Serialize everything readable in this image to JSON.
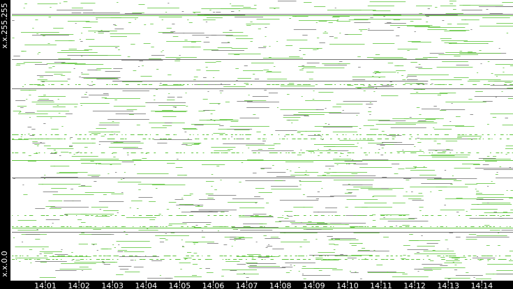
{
  "chart_data": {
    "type": "scatter",
    "title": "",
    "xlabel": "",
    "ylabel": "",
    "y_tick_labels": {
      "top": "x.x.255.255",
      "bottom": "x.x.0.0"
    },
    "x_tick_labels": [
      "14:01",
      "14:02",
      "14:03",
      "14:04",
      "14:05",
      "14:06",
      "14:07",
      "14:08",
      "14:09",
      "14:10",
      "14:11",
      "14:12",
      "14:13",
      "14:14"
    ],
    "xlim": [
      "14:00",
      "14:15"
    ],
    "grid": false,
    "colors": {
      "green": "#5cc43a",
      "gray": "#707070",
      "background": "#ffffff",
      "frame": "#000000"
    },
    "prominent_lines": [
      {
        "color": "gray",
        "ip_fraction": 0.953,
        "from": "14:00",
        "to": "14:15"
      },
      {
        "color": "green",
        "ip_fraction": 0.948,
        "from": "14:00",
        "to": "14:15"
      },
      {
        "color": "gray",
        "ip_fraction": 0.79,
        "from": "14:00",
        "to": "14:15"
      },
      {
        "color": "gray",
        "ip_fraction": 0.712,
        "from": "14:03",
        "to": "14:12.4"
      },
      {
        "color": "gray",
        "ip_fraction": 0.685,
        "from": "14:00",
        "to": "14:15"
      },
      {
        "color": "green",
        "ip_fraction": 0.427,
        "from": "14:00",
        "to": "14:15"
      },
      {
        "color": "gray",
        "ip_fraction": 0.366,
        "from": "14:00",
        "to": "14:12.8"
      },
      {
        "color": "green",
        "ip_fraction": 0.185,
        "from": "14:00",
        "to": "14:15"
      },
      {
        "color": "gray",
        "ip_fraction": 0.17,
        "from": "14:00",
        "to": "14:15"
      }
    ]
  }
}
